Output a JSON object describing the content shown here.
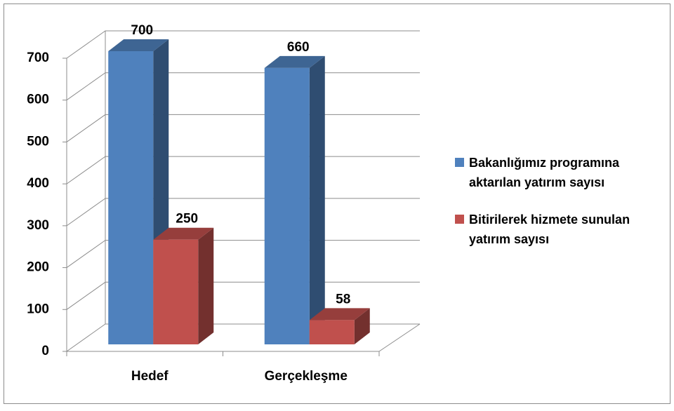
{
  "chart_data": {
    "type": "bar3d",
    "categories": [
      "Hedef",
      "Gerçekleşme"
    ],
    "series": [
      {
        "name": "Bakanlığımız programına aktarılan yatırım sayısı",
        "color": "#4f81bd",
        "values": [
          700,
          660
        ]
      },
      {
        "name": "Bitirilerek hizmete sunulan yatırım sayısı",
        "color": "#c0504d",
        "values": [
          250,
          58
        ]
      }
    ],
    "ylim": [
      0,
      700
    ],
    "yticks": [
      0,
      100,
      200,
      300,
      400,
      500,
      600,
      700
    ],
    "grid": true,
    "legend": "right"
  }
}
